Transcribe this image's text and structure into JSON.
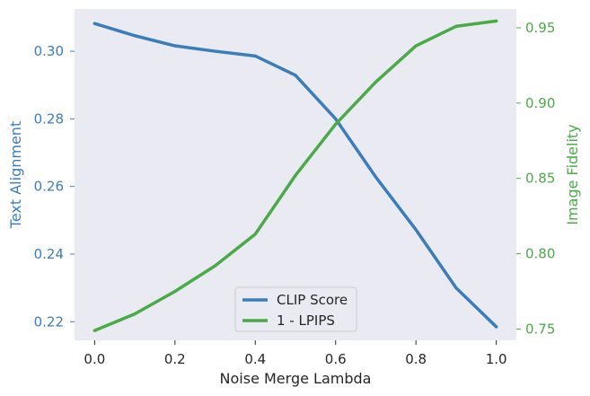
{
  "chart_data": {
    "type": "line",
    "title": "",
    "xlabel": "Noise Merge Lambda",
    "ylabel_left": "Text Alignment",
    "ylabel_right": "Image Fidelity",
    "x": [
      0.0,
      0.1,
      0.2,
      0.3,
      0.4,
      0.5,
      0.6,
      0.7,
      0.8,
      0.9,
      1.0
    ],
    "xlim": [
      -0.05,
      1.05
    ],
    "xticks": [
      "0.0",
      "0.2",
      "0.4",
      "0.6",
      "0.8",
      "1.0"
    ],
    "xtick_values": [
      0.0,
      0.2,
      0.4,
      0.6,
      0.8,
      1.0
    ],
    "ylim_left": [
      0.2145,
      0.3125
    ],
    "yticks_left": [
      "0.22",
      "0.24",
      "0.26",
      "0.28",
      "0.30"
    ],
    "ytick_values_left": [
      0.22,
      0.24,
      0.26,
      0.28,
      0.3
    ],
    "ylim_right": [
      0.7425,
      0.9625
    ],
    "yticks_right": [
      "0.75",
      "0.80",
      "0.85",
      "0.90",
      "0.95"
    ],
    "ytick_values_right": [
      0.75,
      0.8,
      0.85,
      0.9,
      0.95
    ],
    "grid": false,
    "legend_position": "bottom-center",
    "background_color": "#eaeaf2",
    "series": [
      {
        "name": "CLIP Score",
        "axis": "left",
        "color": "#3a7dba",
        "values": [
          0.3082,
          0.3046,
          0.3016,
          0.3,
          0.2986,
          0.2929,
          0.28,
          0.2628,
          0.2472,
          0.23,
          0.2185
        ]
      },
      {
        "name": "1 - LPIPS",
        "axis": "right",
        "color": "#4aaa47",
        "values": [
          0.749,
          0.76,
          0.775,
          0.792,
          0.813,
          0.852,
          0.886,
          0.914,
          0.938,
          0.951,
          0.9545
        ]
      }
    ]
  }
}
